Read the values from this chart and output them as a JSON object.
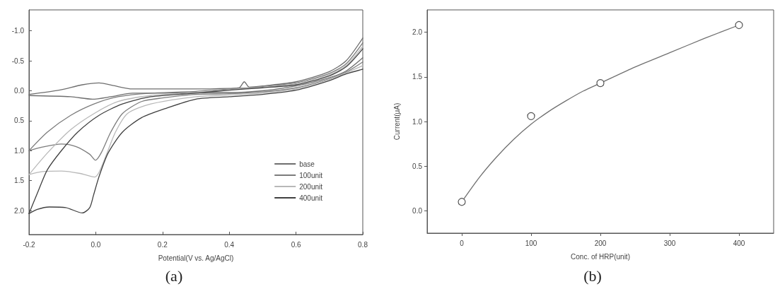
{
  "chart_data": [
    {
      "type": "line",
      "xlabel": "Potential(V vs. Ag/AgCl)",
      "annotations": [
        "(a)"
      ],
      "xlim": [
        -0.2,
        0.8
      ],
      "xticks": [
        -0.2,
        {
          "value": 0,
          "label": "0.0"
        },
        0.2,
        0.4,
        0.6,
        0.8
      ],
      "ylim": [
        2.4,
        -1.35
      ],
      "yticks": [
        {
          "value": -1,
          "label": "-1.0"
        },
        -0.5,
        {
          "value": 0,
          "label": "0.0"
        },
        0.5,
        {
          "value": 1,
          "label": "1.0"
        },
        1.5,
        {
          "value": 2,
          "label": "2.0"
        }
      ],
      "legend": "bottom right",
      "marker": "none",
      "line_style": "solid",
      "series": [
        {
          "name": "base",
          "color": "#6e6e6e",
          "x": [
            -0.2,
            -0.11,
            -0.04,
            0.01,
            0.05,
            0.11,
            0.2,
            0.3,
            0.4,
            0.43,
            0.445,
            0.46,
            0.5,
            0.6,
            0.7,
            0.75,
            0.8
          ],
          "values": [
            0.06,
            -0.01,
            -0.1,
            -0.13,
            -0.09,
            -0.03,
            -0.03,
            -0.03,
            -0.04,
            -0.05,
            -0.15,
            -0.06,
            -0.08,
            -0.15,
            -0.32,
            -0.5,
            -0.88
          ]
        },
        {
          "color": "#6e6e6e",
          "x": [
            -0.2,
            -0.075,
            -0.01,
            0.045,
            0.11,
            0.2,
            0.3,
            0.4,
            0.5,
            0.6,
            0.7,
            0.75,
            0.8
          ],
          "values": [
            0.08,
            0.1,
            0.14,
            0.1,
            0.04,
            0.04,
            0.03,
            0.03,
            0.0,
            -0.08,
            -0.22,
            -0.33,
            -0.55
          ]
        },
        {
          "name": "100unit",
          "color": "#7c7c7c",
          "x": [
            -0.2,
            -0.145,
            -0.075,
            -0.005,
            0.067,
            0.165,
            0.3,
            0.4,
            0.5,
            0.6,
            0.7,
            0.75,
            0.8
          ],
          "values": [
            1.0,
            0.69,
            0.41,
            0.22,
            0.1,
            0.04,
            0.01,
            -0.03,
            -0.07,
            -0.13,
            -0.29,
            -0.45,
            -0.8
          ]
        },
        {
          "color": "#7c7c7c",
          "x": [
            -0.2,
            -0.16,
            -0.103,
            -0.06,
            -0.018,
            -0.001,
            0.016,
            0.045,
            0.08,
            0.137,
            0.2,
            0.3,
            0.4,
            0.5,
            0.6,
            0.7,
            0.75,
            0.8
          ],
          "values": [
            1.0,
            0.94,
            0.89,
            0.93,
            1.06,
            1.16,
            1.04,
            0.69,
            0.38,
            0.18,
            0.12,
            0.06,
            0.05,
            0.02,
            -0.05,
            -0.2,
            -0.31,
            -0.48
          ]
        },
        {
          "name": "200unit",
          "color": "#b8b8b8",
          "x": [
            -0.2,
            -0.145,
            -0.075,
            -0.005,
            0.067,
            0.165,
            0.3,
            0.4,
            0.5,
            0.6,
            0.7,
            0.75,
            0.8
          ],
          "values": [
            1.4,
            1.04,
            0.65,
            0.38,
            0.18,
            0.08,
            0.03,
            -0.02,
            -0.06,
            -0.12,
            -0.27,
            -0.42,
            -0.74
          ]
        },
        {
          "color": "#b8b8b8",
          "x": [
            -0.2,
            -0.16,
            -0.103,
            -0.047,
            -0.003,
            0.01,
            0.031,
            0.059,
            0.095,
            0.165,
            0.3,
            0.4,
            0.5,
            0.6,
            0.7,
            0.75,
            0.8
          ],
          "values": [
            1.4,
            1.35,
            1.34,
            1.38,
            1.44,
            1.36,
            1.08,
            0.69,
            0.38,
            0.22,
            0.1,
            0.07,
            0.04,
            -0.03,
            -0.19,
            -0.3,
            -0.42
          ]
        },
        {
          "name": "400unit",
          "color": "#404040",
          "x": [
            -0.2,
            -0.175,
            -0.145,
            -0.103,
            -0.054,
            0.01,
            0.08,
            0.165,
            0.3,
            0.4,
            0.5,
            0.6,
            0.7,
            0.75,
            0.8
          ],
          "values": [
            2.05,
            1.71,
            1.32,
            1.0,
            0.69,
            0.41,
            0.22,
            0.1,
            0.04,
            -0.01,
            -0.05,
            -0.1,
            -0.25,
            -0.4,
            -0.7
          ]
        },
        {
          "color": "#404040",
          "x": [
            -0.2,
            -0.175,
            -0.139,
            -0.09,
            -0.04,
            -0.018,
            -0.007,
            0.01,
            0.037,
            0.08,
            0.137,
            0.207,
            0.3,
            0.4,
            0.5,
            0.6,
            0.7,
            0.75,
            0.8
          ],
          "values": [
            2.05,
            1.98,
            1.94,
            1.95,
            2.04,
            1.95,
            1.75,
            1.43,
            1.04,
            0.69,
            0.45,
            0.3,
            0.14,
            0.1,
            0.06,
            -0.01,
            -0.17,
            -0.28,
            -0.36
          ]
        }
      ]
    },
    {
      "type": "scatter",
      "xlabel": "Conc. of HRP(unit)",
      "ylabel": "Current(μA)",
      "annotations": [
        "(b)"
      ],
      "xlim": [
        -50,
        450
      ],
      "xticks": [
        0,
        100,
        200,
        300,
        400
      ],
      "ylim": [
        -0.25,
        2.25
      ],
      "yticks": [
        {
          "value": 0,
          "label": "0.0"
        },
        0.5,
        {
          "value": 1,
          "label": "1.0"
        },
        1.5,
        {
          "value": 2,
          "label": "2.0"
        }
      ],
      "line_style": "solid",
      "series": [
        {
          "type": "line",
          "color": "#707070",
          "marker": "none",
          "x": [
            0,
            25,
            50,
            75,
            100,
            125,
            150,
            175,
            200,
            250,
            300,
            350,
            400
          ],
          "values": [
            0.1,
            0.37,
            0.6,
            0.8,
            0.97,
            1.11,
            1.23,
            1.34,
            1.43,
            1.61,
            1.77,
            1.93,
            2.08
          ]
        },
        {
          "color": "#555555",
          "marker": "circle",
          "x": [
            0,
            100,
            200,
            400
          ],
          "values": [
            0.1,
            1.06,
            1.43,
            2.08
          ]
        }
      ]
    }
  ]
}
